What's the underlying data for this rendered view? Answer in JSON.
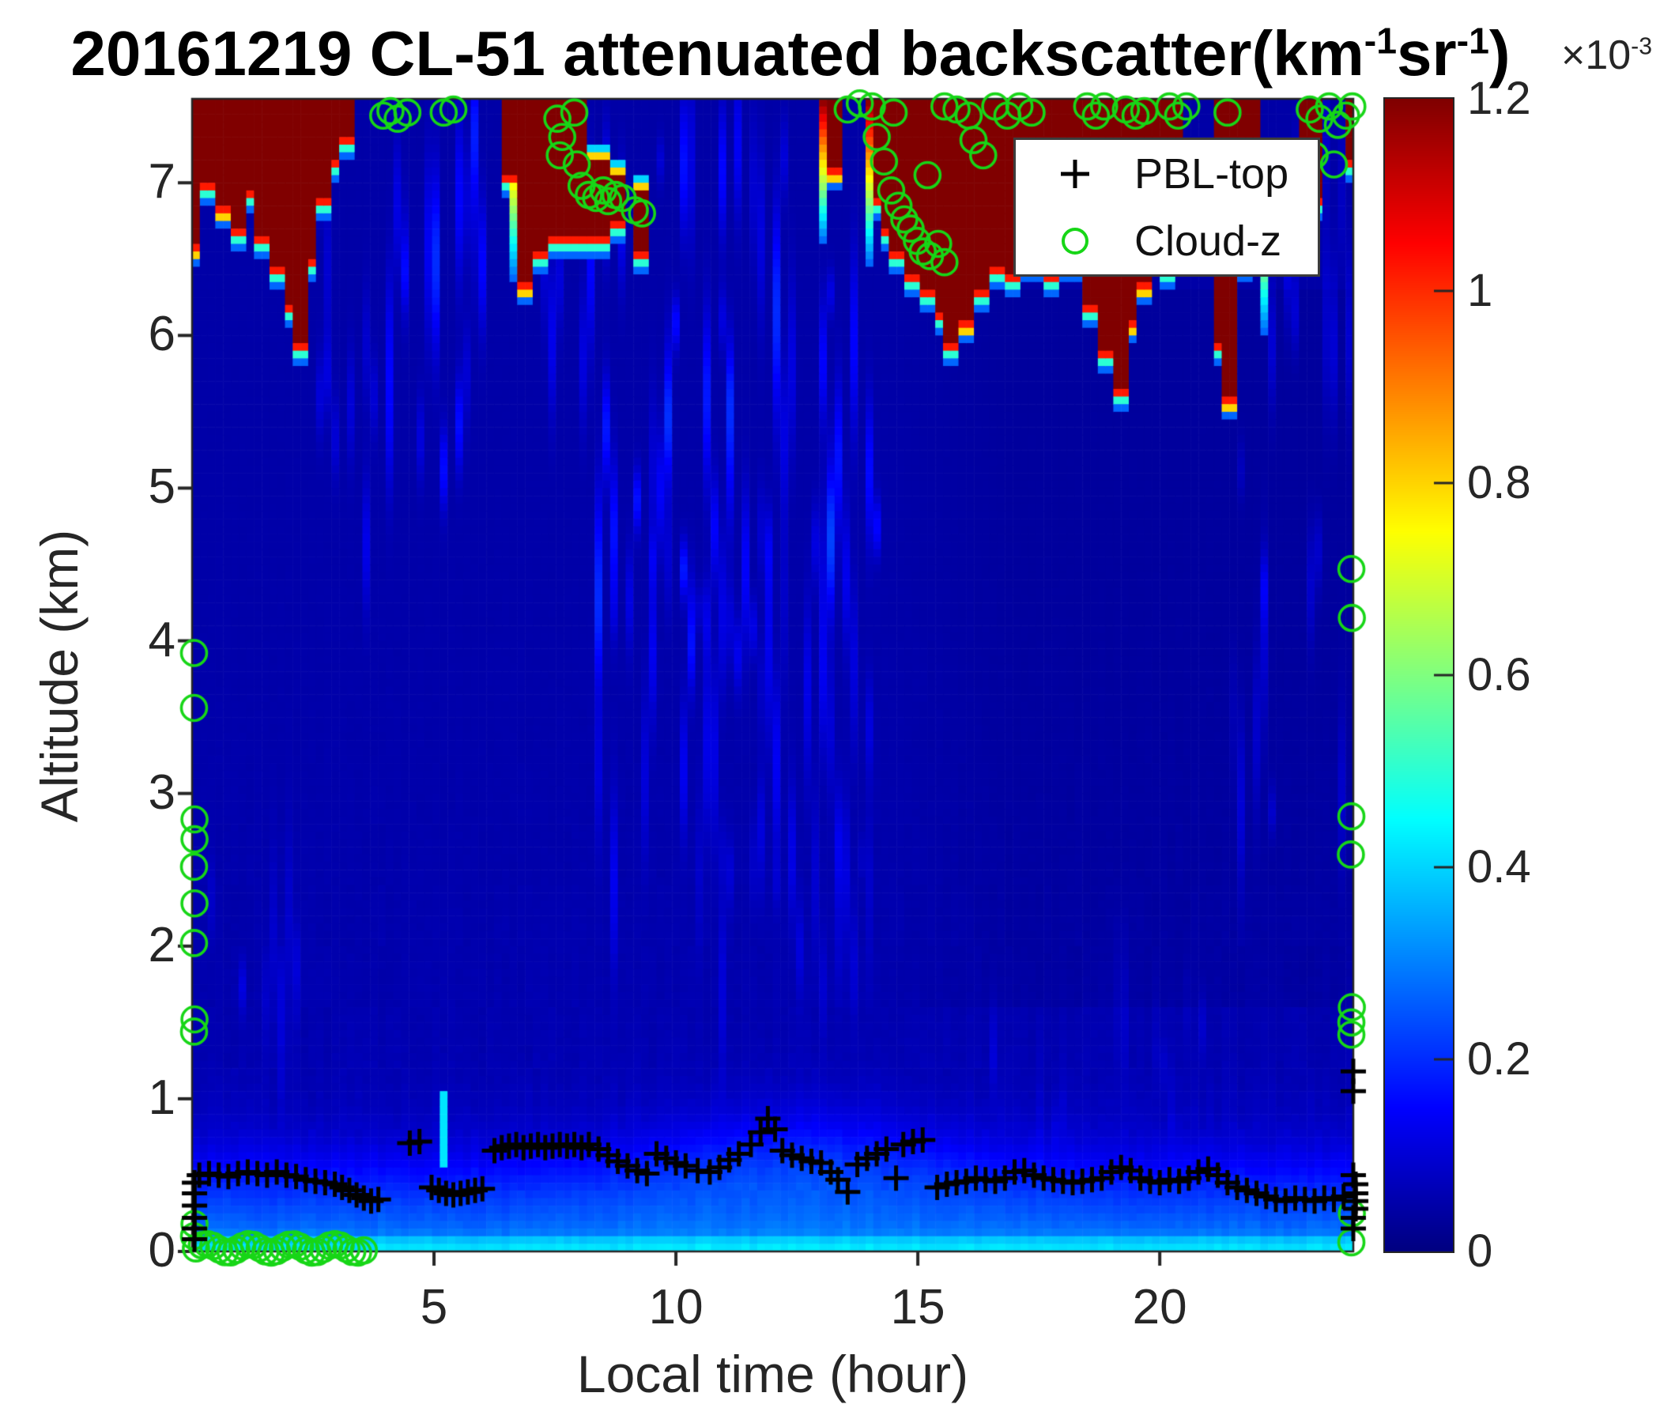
{
  "title": {
    "parts": [
      {
        "t": "20161219  CL-51 attenuated backscatter(km"
      },
      {
        "sup": "-1"
      },
      {
        "t": "sr"
      },
      {
        "sup": "-1"
      },
      {
        "t": ")"
      }
    ]
  },
  "colorbar_exponent": {
    "parts": [
      {
        "t": "×10"
      },
      {
        "sup": "-3"
      }
    ]
  },
  "axes": {
    "xlabel": "Local time (hour)",
    "ylabel": "Altitude (km)",
    "xticks": [
      "5",
      "10",
      "15",
      "20"
    ],
    "xtick_values": [
      5,
      10,
      15,
      20
    ],
    "yticks": [
      "0",
      "1",
      "2",
      "3",
      "4",
      "5",
      "6",
      "7"
    ],
    "ytick_values": [
      0,
      1,
      2,
      3,
      4,
      5,
      6,
      7
    ]
  },
  "colorbar": {
    "tick_labels": [
      "0",
      "0.2",
      "0.4",
      "0.6",
      "0.8",
      "1",
      "1.2"
    ],
    "tick_values": [
      0,
      0.2,
      0.4,
      0.6,
      0.8,
      1,
      1.2
    ],
    "vmax": 1.2,
    "colormap": "jet"
  },
  "legend": {
    "items": [
      {
        "marker": "plus-icon",
        "label": "PBL-top",
        "color": "#000000"
      },
      {
        "marker": "circle-icon",
        "label": "Cloud-z",
        "color": "#17d617"
      }
    ]
  },
  "chart_data": {
    "type": "heatmap",
    "title": "20161219  CL-51 attenuated backscatter(km-1 sr-1)",
    "xlabel": "Local time (hour)",
    "ylabel": "Altitude (km)",
    "xlim": [
      0,
      24
    ],
    "ylim": [
      0,
      7.55
    ],
    "value_units": "1e-3 km^-1 sr^-1",
    "vmax": 1.2,
    "colormap": "jet",
    "marker_colors": {
      "pbl": "#000000",
      "cloud": "#17d617"
    },
    "clouds": [
      [
        0,
        0.2,
        6.6
      ],
      [
        0.2,
        0.5,
        7.0
      ],
      [
        0.5,
        0.75,
        6.85
      ],
      [
        0.75,
        1.05,
        6.7
      ],
      [
        1.05,
        1.35,
        6.95
      ],
      [
        1.35,
        1.6,
        6.65
      ],
      [
        1.6,
        1.85,
        6.45
      ],
      [
        1.85,
        2.1,
        6.2
      ],
      [
        2.1,
        2.35,
        5.95
      ],
      [
        2.35,
        2.6,
        6.5
      ],
      [
        2.6,
        2.85,
        6.9
      ],
      [
        2.85,
        3.1,
        7.15
      ],
      [
        3.1,
        3.4,
        7.3
      ],
      [
        6.45,
        6.65,
        7.05
      ],
      [
        6.8,
        7.05,
        6.35
      ],
      [
        7.1,
        7.3,
        6.55
      ],
      [
        7.3,
        8.1,
        6.65
      ],
      [
        8.1,
        8.65,
        6.65,
        7.15
      ],
      [
        8.65,
        8.9,
        6.75,
        7.05
      ],
      [
        9.1,
        9.4,
        6.55,
        6.95
      ],
      [
        13.2,
        13.45,
        7.1
      ],
      [
        14.05,
        14.2,
        6.9
      ],
      [
        14.2,
        14.45,
        6.7
      ],
      [
        14.45,
        14.7,
        6.55
      ],
      [
        14.7,
        15.0,
        6.4
      ],
      [
        15.0,
        15.3,
        6.3
      ],
      [
        15.3,
        15.6,
        6.15
      ],
      [
        15.6,
        15.9,
        5.95
      ],
      [
        15.9,
        16.15,
        6.1
      ],
      [
        16.15,
        16.45,
        6.3
      ],
      [
        16.45,
        16.8,
        6.45
      ],
      [
        16.8,
        17.2,
        6.4
      ],
      [
        17.2,
        17.6,
        6.5
      ],
      [
        17.6,
        18.0,
        6.4
      ],
      [
        18.0,
        18.4,
        6.5
      ],
      [
        18.4,
        18.7,
        6.2
      ],
      [
        18.7,
        19.0,
        5.9
      ],
      [
        19.0,
        19.3,
        5.65
      ],
      [
        19.3,
        19.55,
        6.1
      ],
      [
        19.55,
        19.8,
        6.35
      ],
      [
        19.8,
        20.05,
        6.55
      ],
      [
        20.05,
        20.35,
        6.45
      ],
      [
        20.35,
        20.55,
        6.6
      ],
      [
        21.05,
        21.35,
        5.95
      ],
      [
        21.35,
        21.65,
        5.6
      ],
      [
        21.65,
        21.95,
        6.5
      ],
      [
        21.95,
        22.1,
        6.9
      ],
      [
        22.85,
        23.3,
        6.9
      ],
      [
        23.8,
        24.2,
        7.15
      ]
    ],
    "fringe_columns": [
      {
        "t": 14.0,
        "z": [
          6.45,
          7.55
        ]
      },
      {
        "t": 6.72,
        "z": [
          6.35,
          7.55
        ]
      },
      {
        "t": 13.1,
        "z": [
          6.6,
          7.55
        ]
      },
      {
        "t": 22.15,
        "z": [
          6.0,
          7.2
        ]
      }
    ],
    "cyan_plume": {
      "t": [
        5.12,
        5.3
      ],
      "z": [
        0.55,
        1.05
      ],
      "value": 0.42
    },
    "background_profile": {
      "surface": 0.4,
      "boundary_layer": 0.21,
      "mix_night": 0.5,
      "mix_day": 0.75,
      "free_troposphere": 0.045
    },
    "streak_regions": [
      {
        "t": [
          2.6,
          6.6
        ],
        "z": [
          4.6,
          7.35
        ],
        "amp": 0.1,
        "p": 0.5,
        "n": 2
      },
      {
        "t": [
          7.9,
          14.3
        ],
        "z": [
          4.4,
          7.45
        ],
        "amp": 0.11,
        "p": 0.6,
        "n": 2
      },
      {
        "t": [
          8.2,
          14.0
        ],
        "z": [
          2.4,
          4.7
        ],
        "amp": 0.07,
        "p": 0.5,
        "n": 2
      },
      {
        "t": [
          10.3,
          14.0
        ],
        "z": [
          1.4,
          2.6
        ],
        "amp": 0.05,
        "p": 0.4,
        "n": 1
      },
      {
        "t": [
          21.3,
          24.2
        ],
        "z": [
          2.8,
          7.4
        ],
        "amp": 0.055,
        "p": 0.5,
        "n": 2
      },
      {
        "t": [
          0.2,
          2.6
        ],
        "z": [
          1.2,
          2.5
        ],
        "amp": 0.045,
        "p": 0.35,
        "n": 1
      },
      {
        "t": [
          16.5,
          21.2
        ],
        "z": [
          0.8,
          1.7
        ],
        "amp": 0.04,
        "p": 0.35,
        "n": 1
      },
      {
        "t": [
          6.6,
          8.0
        ],
        "z": [
          5.5,
          7.4
        ],
        "amp": 0.08,
        "p": 0.5,
        "n": 1
      }
    ],
    "pbl_top": [
      [
        0.05,
        0.08
      ],
      [
        0.05,
        0.15
      ],
      [
        0.05,
        0.22
      ],
      [
        0.05,
        0.3
      ],
      [
        0.05,
        0.38
      ],
      [
        0.05,
        0.45
      ],
      [
        0.15,
        0.5
      ],
      [
        0.35,
        0.51
      ],
      [
        0.55,
        0.5
      ],
      [
        0.75,
        0.49
      ],
      [
        0.95,
        0.51
      ],
      [
        1.15,
        0.52
      ],
      [
        1.35,
        0.51
      ],
      [
        1.55,
        0.5
      ],
      [
        1.75,
        0.52
      ],
      [
        1.95,
        0.5
      ],
      [
        2.15,
        0.49
      ],
      [
        2.35,
        0.47
      ],
      [
        2.55,
        0.46
      ],
      [
        2.75,
        0.45
      ],
      [
        2.95,
        0.44
      ],
      [
        3.1,
        0.42
      ],
      [
        3.25,
        0.4
      ],
      [
        3.4,
        0.37
      ],
      [
        3.55,
        0.35
      ],
      [
        3.7,
        0.33
      ],
      [
        3.85,
        0.34
      ],
      [
        4.5,
        0.71
      ],
      [
        4.7,
        0.72
      ],
      [
        4.95,
        0.42
      ],
      [
        5.1,
        0.4
      ],
      [
        5.25,
        0.38
      ],
      [
        5.4,
        0.37
      ],
      [
        5.55,
        0.38
      ],
      [
        5.7,
        0.39
      ],
      [
        5.85,
        0.4
      ],
      [
        6.0,
        0.41
      ],
      [
        6.25,
        0.66
      ],
      [
        6.4,
        0.68
      ],
      [
        6.55,
        0.69
      ],
      [
        6.7,
        0.7
      ],
      [
        6.85,
        0.68
      ],
      [
        7.0,
        0.69
      ],
      [
        7.15,
        0.7
      ],
      [
        7.3,
        0.68
      ],
      [
        7.45,
        0.69
      ],
      [
        7.6,
        0.7
      ],
      [
        7.75,
        0.69
      ],
      [
        7.9,
        0.7
      ],
      [
        8.05,
        0.68
      ],
      [
        8.2,
        0.7
      ],
      [
        8.4,
        0.67
      ],
      [
        8.6,
        0.63
      ],
      [
        8.8,
        0.59
      ],
      [
        9.0,
        0.56
      ],
      [
        9.2,
        0.53
      ],
      [
        9.4,
        0.51
      ],
      [
        9.6,
        0.64
      ],
      [
        9.8,
        0.61
      ],
      [
        10.0,
        0.58
      ],
      [
        10.2,
        0.56
      ],
      [
        10.45,
        0.53
      ],
      [
        10.7,
        0.52
      ],
      [
        10.9,
        0.55
      ],
      [
        11.1,
        0.6
      ],
      [
        11.3,
        0.64
      ],
      [
        11.55,
        0.7
      ],
      [
        11.75,
        0.78
      ],
      [
        11.9,
        0.87
      ],
      [
        12.05,
        0.8
      ],
      [
        12.2,
        0.66
      ],
      [
        12.4,
        0.63
      ],
      [
        12.6,
        0.61
      ],
      [
        12.8,
        0.59
      ],
      [
        13.0,
        0.58
      ],
      [
        13.2,
        0.52
      ],
      [
        13.35,
        0.47
      ],
      [
        13.55,
        0.39
      ],
      [
        13.75,
        0.57
      ],
      [
        13.95,
        0.61
      ],
      [
        14.15,
        0.64
      ],
      [
        14.35,
        0.67
      ],
      [
        14.55,
        0.48
      ],
      [
        14.7,
        0.7
      ],
      [
        14.9,
        0.72
      ],
      [
        15.1,
        0.73
      ],
      [
        15.4,
        0.42
      ],
      [
        15.6,
        0.44
      ],
      [
        15.8,
        0.45
      ],
      [
        16.0,
        0.46
      ],
      [
        16.2,
        0.48
      ],
      [
        16.4,
        0.47
      ],
      [
        16.6,
        0.46
      ],
      [
        16.8,
        0.48
      ],
      [
        17.0,
        0.52
      ],
      [
        17.2,
        0.53
      ],
      [
        17.4,
        0.5
      ],
      [
        17.6,
        0.48
      ],
      [
        17.8,
        0.47
      ],
      [
        18.0,
        0.46
      ],
      [
        18.2,
        0.45
      ],
      [
        18.4,
        0.46
      ],
      [
        18.6,
        0.47
      ],
      [
        18.8,
        0.48
      ],
      [
        19.0,
        0.52
      ],
      [
        19.2,
        0.55
      ],
      [
        19.4,
        0.53
      ],
      [
        19.6,
        0.48
      ],
      [
        19.8,
        0.46
      ],
      [
        20.0,
        0.45
      ],
      [
        20.2,
        0.47
      ],
      [
        20.4,
        0.46
      ],
      [
        20.6,
        0.48
      ],
      [
        20.8,
        0.52
      ],
      [
        21.0,
        0.54
      ],
      [
        21.2,
        0.5
      ],
      [
        21.4,
        0.45
      ],
      [
        21.6,
        0.42
      ],
      [
        21.8,
        0.4
      ],
      [
        22.0,
        0.38
      ],
      [
        22.2,
        0.36
      ],
      [
        22.4,
        0.34
      ],
      [
        22.6,
        0.33
      ],
      [
        22.8,
        0.35
      ],
      [
        23.0,
        0.34
      ],
      [
        23.2,
        0.33
      ],
      [
        23.4,
        0.35
      ],
      [
        23.6,
        0.34
      ],
      [
        23.8,
        0.36
      ],
      [
        24.0,
        1.18
      ],
      [
        24.0,
        1.05
      ],
      [
        24.0,
        0.5
      ],
      [
        24.05,
        0.44
      ],
      [
        24.05,
        0.38
      ],
      [
        24.05,
        0.33
      ],
      [
        24.05,
        0.28
      ],
      [
        24.0,
        0.22
      ],
      [
        24.0,
        0.15
      ]
    ],
    "cloud_z": [
      [
        0.04,
        3.92
      ],
      [
        0.04,
        3.56
      ],
      [
        0.05,
        2.83
      ],
      [
        0.05,
        2.7
      ],
      [
        0.04,
        2.52
      ],
      [
        0.05,
        2.28
      ],
      [
        0.04,
        2.02
      ],
      [
        0.05,
        1.52
      ],
      [
        0.04,
        1.44
      ],
      [
        0.05,
        0.18
      ],
      [
        0.04,
        0.1
      ],
      [
        3.95,
        7.44
      ],
      [
        4.1,
        7.47
      ],
      [
        4.25,
        7.42
      ],
      [
        4.45,
        7.46
      ],
      [
        5.2,
        7.46
      ],
      [
        5.4,
        7.48
      ],
      [
        7.55,
        7.42
      ],
      [
        7.65,
        7.3
      ],
      [
        7.6,
        7.18
      ],
      [
        7.9,
        7.46
      ],
      [
        7.95,
        7.12
      ],
      [
        8.05,
        6.98
      ],
      [
        8.2,
        6.92
      ],
      [
        8.35,
        6.9
      ],
      [
        8.5,
        6.95
      ],
      [
        8.6,
        6.88
      ],
      [
        8.75,
        6.92
      ],
      [
        8.9,
        6.9
      ],
      [
        9.15,
        6.82
      ],
      [
        9.3,
        6.8
      ],
      [
        13.55,
        7.48
      ],
      [
        13.8,
        7.52
      ],
      [
        14.05,
        7.5
      ],
      [
        14.15,
        7.3
      ],
      [
        14.3,
        7.14
      ],
      [
        14.5,
        7.46
      ],
      [
        14.45,
        6.95
      ],
      [
        14.6,
        6.85
      ],
      [
        14.72,
        6.76
      ],
      [
        14.85,
        6.7
      ],
      [
        14.98,
        6.62
      ],
      [
        15.1,
        6.55
      ],
      [
        15.25,
        6.52
      ],
      [
        15.42,
        6.6
      ],
      [
        15.55,
        6.48
      ],
      [
        15.2,
        7.05
      ],
      [
        15.55,
        7.5
      ],
      [
        15.8,
        7.48
      ],
      [
        16.05,
        7.44
      ],
      [
        16.15,
        7.28
      ],
      [
        16.35,
        7.18
      ],
      [
        16.6,
        7.5
      ],
      [
        16.85,
        7.44
      ],
      [
        17.1,
        7.5
      ],
      [
        17.35,
        7.46
      ],
      [
        18.5,
        7.5
      ],
      [
        18.68,
        7.44
      ],
      [
        18.85,
        7.5
      ],
      [
        19.3,
        7.48
      ],
      [
        19.5,
        7.44
      ],
      [
        19.68,
        7.47
      ],
      [
        20.2,
        7.5
      ],
      [
        20.38,
        7.44
      ],
      [
        20.55,
        7.5
      ],
      [
        21.4,
        7.46
      ],
      [
        23.1,
        7.48
      ],
      [
        23.3,
        7.42
      ],
      [
        23.5,
        7.5
      ],
      [
        23.68,
        7.38
      ],
      [
        23.85,
        7.44
      ],
      [
        23.98,
        7.5
      ],
      [
        23.2,
        7.18
      ],
      [
        23.6,
        7.12
      ],
      [
        23.96,
        4.47
      ],
      [
        23.97,
        4.15
      ],
      [
        23.96,
        2.85
      ],
      [
        23.95,
        2.6
      ],
      [
        23.97,
        1.6
      ],
      [
        23.96,
        1.5
      ],
      [
        23.96,
        1.42
      ],
      [
        23.97,
        0.25
      ],
      [
        23.96,
        0.06
      ]
    ],
    "cloud_z_bottom_chain": {
      "t_start": 0.08,
      "t_end": 3.55,
      "count": 30,
      "z": 0.02
    }
  }
}
